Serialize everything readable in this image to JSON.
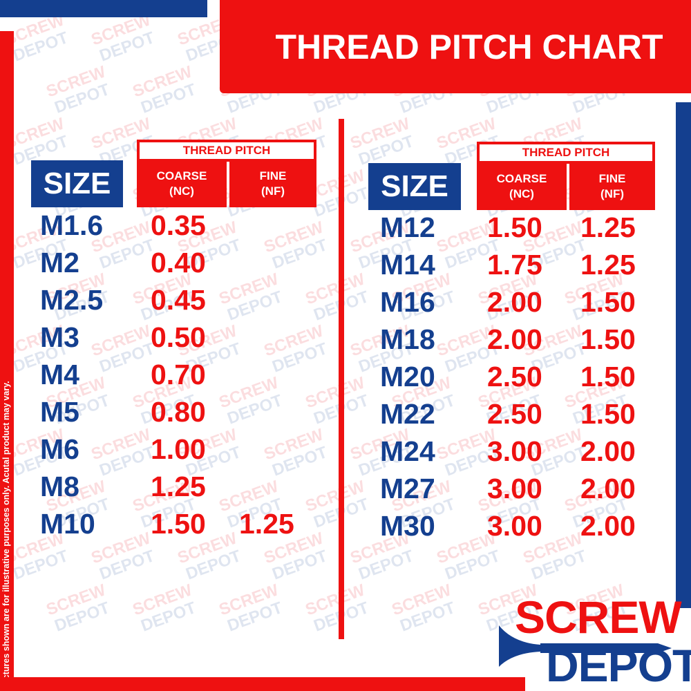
{
  "title": "THREAD PITCH CHART",
  "disclaimer": "Pictures shown are for illustrative purposes only. Acutal product may vary.",
  "watermark": [
    "SCREW",
    "DEPOT"
  ],
  "logo": {
    "line1": "SCREW",
    "line2": "DEPOT",
    "icon": "screw-icon"
  },
  "colors": {
    "red": "#ee1111",
    "blue": "#143f8f"
  },
  "headers": {
    "size": "SIZE",
    "thread_pitch": "THREAD PITCH",
    "coarse": "COARSE",
    "coarse_abbr": "(NC)",
    "fine": "FINE",
    "fine_abbr": "(NF)"
  },
  "left_table": [
    {
      "size": "M1.6",
      "coarse": "0.35",
      "fine": ""
    },
    {
      "size": "M2",
      "coarse": "0.40",
      "fine": ""
    },
    {
      "size": "M2.5",
      "coarse": "0.45",
      "fine": ""
    },
    {
      "size": "M3",
      "coarse": "0.50",
      "fine": ""
    },
    {
      "size": "M4",
      "coarse": "0.70",
      "fine": ""
    },
    {
      "size": "M5",
      "coarse": "0.80",
      "fine": ""
    },
    {
      "size": "M6",
      "coarse": "1.00",
      "fine": ""
    },
    {
      "size": "M8",
      "coarse": "1.25",
      "fine": ""
    },
    {
      "size": "M10",
      "coarse": "1.50",
      "fine": "1.25"
    }
  ],
  "right_table": [
    {
      "size": "M12",
      "coarse": "1.50",
      "fine": "1.25"
    },
    {
      "size": "M14",
      "coarse": "1.75",
      "fine": "1.25"
    },
    {
      "size": "M16",
      "coarse": "2.00",
      "fine": "1.50"
    },
    {
      "size": "M18",
      "coarse": "2.00",
      "fine": "1.50"
    },
    {
      "size": "M20",
      "coarse": "2.50",
      "fine": "1.50"
    },
    {
      "size": "M22",
      "coarse": "2.50",
      "fine": "1.50"
    },
    {
      "size": "M24",
      "coarse": "3.00",
      "fine": "2.00"
    },
    {
      "size": "M27",
      "coarse": "3.00",
      "fine": "2.00"
    },
    {
      "size": "M30",
      "coarse": "3.00",
      "fine": "2.00"
    }
  ]
}
